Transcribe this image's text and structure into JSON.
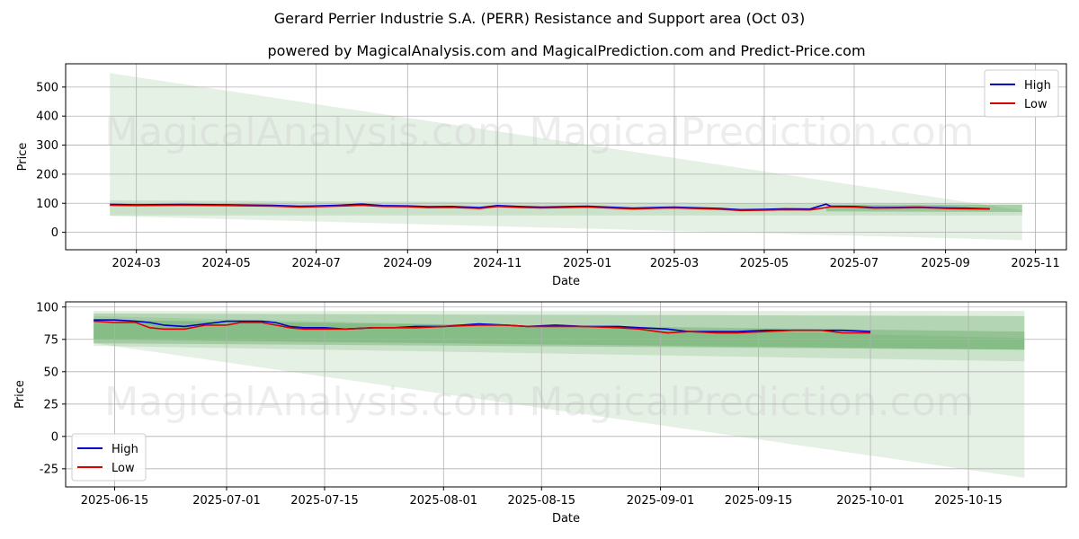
{
  "title": "Gerard Perrier Industrie S.A. (PERR) Resistance and Support area (Oct 03)",
  "subtitle": "powered by MagicalAnalysis.com and MagicalPrediction.com and Predict-Price.com",
  "watermarks": [
    "MagicalAnalysis.com",
    "MagicalPrediction.com"
  ],
  "colors": {
    "high": "#0000cc",
    "low": "#dd0000",
    "band": "#2e8b2e",
    "grid": "#b0b0b0"
  },
  "chart_data": [
    {
      "type": "line",
      "xlabel": "Date",
      "ylabel": "Price",
      "ylim": [
        -60,
        580
      ],
      "xlim": [
        "2024-01-13",
        "2025-11-22"
      ],
      "grid": true,
      "legend": "top-right",
      "xticks": [
        "2024-03",
        "2024-05",
        "2024-07",
        "2024-09",
        "2024-11",
        "2025-01",
        "2025-03",
        "2025-05",
        "2025-07",
        "2025-09",
        "2025-11"
      ],
      "xtick_dates": [
        "2024-03-01",
        "2024-05-01",
        "2024-07-01",
        "2024-09-01",
        "2024-11-01",
        "2025-01-01",
        "2025-03-01",
        "2025-05-01",
        "2025-07-01",
        "2025-09-01",
        "2025-11-01"
      ],
      "yticks": [
        0,
        100,
        200,
        300,
        400,
        500
      ],
      "bands": [
        {
          "start": "2024-02-12",
          "end": "2025-10-23",
          "top": [
            548,
            76
          ],
          "bottom": [
            56,
            -27
          ],
          "opacity": 0.12
        },
        {
          "start": "2024-02-12",
          "end": "2025-10-23",
          "top": [
            110,
            97
          ],
          "bottom": [
            58,
            58
          ],
          "opacity": 0.15
        },
        {
          "start": "2025-06-12",
          "end": "2025-10-23",
          "top": [
            95,
            95
          ],
          "bottom": [
            72,
            70
          ],
          "opacity": 0.3
        }
      ],
      "series": [
        {
          "name": "High",
          "dates": [
            "2024-02-12",
            "2024-03-01",
            "2024-04-01",
            "2024-05-01",
            "2024-06-01",
            "2024-06-20",
            "2024-07-01",
            "2024-07-15",
            "2024-08-01",
            "2024-08-15",
            "2024-09-01",
            "2024-09-15",
            "2024-10-01",
            "2024-10-20",
            "2024-11-01",
            "2024-11-15",
            "2024-12-01",
            "2025-01-01",
            "2025-02-01",
            "2025-02-20",
            "2025-03-01",
            "2025-04-01",
            "2025-04-15",
            "2025-05-01",
            "2025-05-15",
            "2025-06-01",
            "2025-06-12",
            "2025-06-15",
            "2025-07-01",
            "2025-07-15",
            "2025-08-01",
            "2025-08-15",
            "2025-09-01",
            "2025-09-15",
            "2025-10-01"
          ],
          "values": [
            96,
            95,
            96,
            95,
            93,
            90,
            91,
            93,
            97,
            92,
            91,
            88,
            89,
            85,
            92,
            89,
            87,
            90,
            83,
            86,
            87,
            82,
            78,
            79,
            81,
            80,
            97,
            90,
            89,
            85,
            86,
            87,
            84,
            83,
            81
          ]
        },
        {
          "name": "Low",
          "dates": [
            "2024-02-12",
            "2024-03-01",
            "2024-04-01",
            "2024-05-01",
            "2024-06-01",
            "2024-06-20",
            "2024-07-01",
            "2024-07-15",
            "2024-08-01",
            "2024-08-15",
            "2024-09-01",
            "2024-09-15",
            "2024-10-01",
            "2024-10-20",
            "2024-11-01",
            "2024-11-15",
            "2024-12-01",
            "2025-01-01",
            "2025-02-01",
            "2025-02-20",
            "2025-03-01",
            "2025-04-01",
            "2025-04-15",
            "2025-05-01",
            "2025-05-15",
            "2025-06-01",
            "2025-06-12",
            "2025-06-15",
            "2025-07-01",
            "2025-07-15",
            "2025-08-01",
            "2025-08-15",
            "2025-09-01",
            "2025-09-15",
            "2025-10-01"
          ],
          "values": [
            93,
            92,
            93,
            92,
            90,
            87,
            88,
            90,
            93,
            89,
            88,
            85,
            86,
            82,
            89,
            86,
            84,
            87,
            80,
            83,
            84,
            79,
            75,
            76,
            78,
            77,
            85,
            88,
            87,
            83,
            84,
            85,
            82,
            81,
            80
          ]
        }
      ]
    },
    {
      "type": "line",
      "xlabel": "Date",
      "ylabel": "Price",
      "ylim": [
        -39,
        104
      ],
      "xlim": [
        "2025-06-08",
        "2025-10-29"
      ],
      "grid": true,
      "legend": "bottom-left",
      "xticks": [
        "2025-06-15",
        "2025-07-01",
        "2025-07-15",
        "2025-08-01",
        "2025-08-15",
        "2025-09-01",
        "2025-09-15",
        "2025-10-01",
        "2025-10-15"
      ],
      "xtick_dates": [
        "2025-06-15",
        "2025-07-01",
        "2025-07-15",
        "2025-08-01",
        "2025-08-15",
        "2025-09-01",
        "2025-09-15",
        "2025-10-01",
        "2025-10-15"
      ],
      "yticks": [
        -25,
        0,
        25,
        50,
        75,
        100
      ],
      "bands": [
        {
          "start": "2025-06-12",
          "end": "2025-10-23",
          "top": [
            93,
            76
          ],
          "bottom": [
            72,
            -32
          ],
          "opacity": 0.12
        },
        {
          "start": "2025-06-12",
          "end": "2025-10-23",
          "top": [
            97,
            97
          ],
          "bottom": [
            70,
            58
          ],
          "opacity": 0.15
        },
        {
          "start": "2025-06-12",
          "end": "2025-10-23",
          "top": [
            95,
            93
          ],
          "bottom": [
            72,
            67
          ],
          "opacity": 0.25
        },
        {
          "start": "2025-06-12",
          "end": "2025-10-23",
          "top": [
            90,
            81
          ],
          "bottom": [
            75,
            67
          ],
          "opacity": 0.25
        }
      ],
      "series": [
        {
          "name": "High",
          "dates": [
            "2025-06-12",
            "2025-06-15",
            "2025-06-18",
            "2025-06-20",
            "2025-06-22",
            "2025-06-25",
            "2025-06-28",
            "2025-07-01",
            "2025-07-03",
            "2025-07-06",
            "2025-07-08",
            "2025-07-10",
            "2025-07-12",
            "2025-07-15",
            "2025-07-18",
            "2025-07-22",
            "2025-07-25",
            "2025-07-28",
            "2025-08-01",
            "2025-08-06",
            "2025-08-10",
            "2025-08-13",
            "2025-08-17",
            "2025-08-21",
            "2025-08-26",
            "2025-08-29",
            "2025-09-02",
            "2025-09-05",
            "2025-09-09",
            "2025-09-12",
            "2025-09-16",
            "2025-09-20",
            "2025-09-24",
            "2025-09-27",
            "2025-10-01"
          ],
          "values": [
            90,
            90,
            89,
            88,
            86,
            85,
            87,
            89,
            89,
            89,
            88,
            85,
            84,
            84,
            83,
            84,
            84,
            85,
            85,
            87,
            86,
            85,
            86,
            85,
            85,
            84,
            83,
            81,
            81,
            81,
            82,
            82,
            82,
            82,
            81
          ]
        },
        {
          "name": "Low",
          "dates": [
            "2025-06-12",
            "2025-06-15",
            "2025-06-18",
            "2025-06-20",
            "2025-06-22",
            "2025-06-25",
            "2025-06-28",
            "2025-07-01",
            "2025-07-03",
            "2025-07-06",
            "2025-07-08",
            "2025-07-10",
            "2025-07-12",
            "2025-07-15",
            "2025-07-18",
            "2025-07-22",
            "2025-07-25",
            "2025-07-28",
            "2025-08-01",
            "2025-08-06",
            "2025-08-10",
            "2025-08-13",
            "2025-08-17",
            "2025-08-21",
            "2025-08-26",
            "2025-08-29",
            "2025-09-02",
            "2025-09-05",
            "2025-09-09",
            "2025-09-12",
            "2025-09-16",
            "2025-09-20",
            "2025-09-24",
            "2025-09-27",
            "2025-10-01"
          ],
          "values": [
            89,
            88,
            88,
            84,
            83,
            83,
            86,
            86,
            88,
            88,
            86,
            84,
            83,
            83,
            83,
            84,
            84,
            84,
            85,
            86,
            86,
            85,
            85,
            85,
            84,
            83,
            80,
            81,
            80,
            80,
            81,
            82,
            82,
            80,
            80
          ]
        }
      ]
    }
  ]
}
